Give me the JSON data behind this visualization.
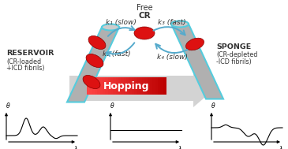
{
  "bg_color": "#ffffff",
  "red_color": "#dd1111",
  "cyan_color": "#55ccdd",
  "gray_color": "#b0b0b0",
  "gray_light": "#cccccc",
  "arrow_color": "#55aacc",
  "text_color": "#333333",
  "k1_label": "k₁ (slow)",
  "k2_label": "k₂ (fast)",
  "k3_label": "k₃ (fast)",
  "k4_label": "k₄ (slow)",
  "reservoir_line1": "RESERVOIR",
  "reservoir_line2": "(CR-loaded",
  "reservoir_line3": "+ICD fibrils)",
  "sponge_line1": "SPONGE",
  "sponge_line2": "(CR-depleted",
  "sponge_line3": "-ICD fibrils)",
  "free_label1": "Free",
  "free_label2": "CR",
  "hopping_label": "Hopping"
}
